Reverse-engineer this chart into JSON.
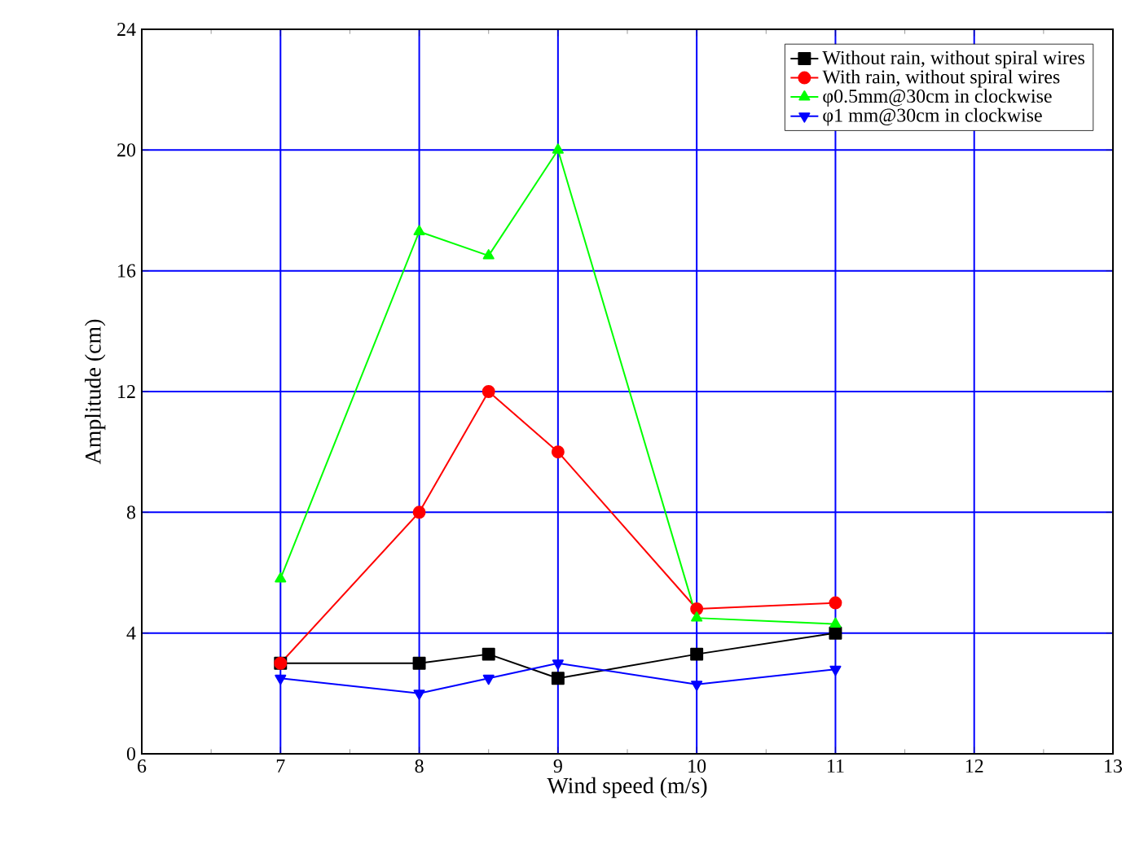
{
  "chart_data": {
    "type": "line",
    "xlabel": "Wind speed (m/s)",
    "ylabel": "Amplitude (cm)",
    "x": [
      7,
      8,
      8.5,
      9,
      10,
      11
    ],
    "xlim": [
      6,
      13
    ],
    "xticks": [
      6,
      7,
      8,
      9,
      10,
      11,
      12,
      13
    ],
    "ylim": [
      0,
      24
    ],
    "yticks": [
      0,
      4,
      8,
      12,
      16,
      20,
      24
    ],
    "grid": true,
    "legend": "top right",
    "line_style": "solid",
    "series": [
      {
        "name": "Without rain, without spiral wires",
        "color": "#000000",
        "marker": "square",
        "values": [
          3,
          3,
          3.3,
          2.5,
          3.3,
          4
        ]
      },
      {
        "name": "With rain, without spiral wires",
        "color": "#ff0000",
        "marker": "circle",
        "values": [
          3,
          8,
          12,
          10,
          4.8,
          5
        ]
      },
      {
        "name": "φ0.5mm@30cm in clockwise",
        "color": "#00ff00",
        "marker": "triangle",
        "values": [
          5.8,
          17.3,
          16.5,
          20,
          4.5,
          4.3
        ]
      },
      {
        "name": "φ1 mm@30cm in clockwise",
        "color": "#0000ff",
        "marker": "triangle down",
        "values": [
          2.5,
          2,
          2.5,
          3,
          2.3,
          2.8
        ]
      }
    ]
  }
}
